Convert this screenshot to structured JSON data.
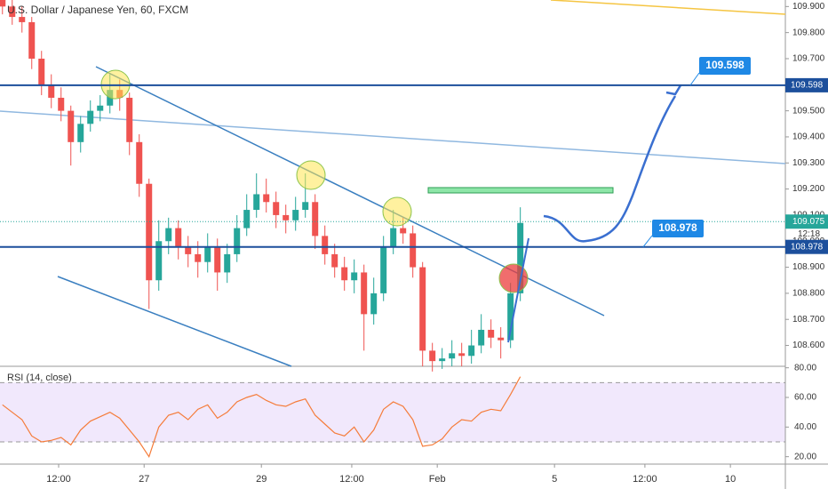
{
  "chart_data": [
    {
      "type": "candlestick",
      "title": "U.S. Dollar / Japanese Yen, 60, FXCM",
      "up_color": "#26a69a",
      "down_color": "#ef5350",
      "x": [
        1,
        5,
        9,
        13,
        17,
        21,
        25,
        29,
        33,
        37,
        41,
        45,
        49,
        53,
        57,
        61,
        65,
        69,
        73,
        77,
        81,
        85,
        89,
        93,
        97,
        101,
        105,
        109,
        113,
        117,
        121,
        125,
        129,
        133,
        137,
        141,
        145,
        149,
        153,
        157,
        161,
        165,
        169,
        173,
        177,
        181,
        185,
        189,
        193,
        197,
        201,
        205,
        209,
        213
      ],
      "ohlc": [
        [
          109.93,
          109.96,
          109.87,
          109.9
        ],
        [
          109.9,
          109.93,
          109.83,
          109.86
        ],
        [
          109.86,
          109.9,
          109.8,
          109.84
        ],
        [
          109.84,
          109.86,
          109.66,
          109.7
        ],
        [
          109.7,
          109.73,
          109.56,
          109.6
        ],
        [
          109.6,
          109.64,
          109.51,
          109.55
        ],
        [
          109.55,
          109.59,
          109.46,
          109.5
        ],
        [
          109.5,
          109.52,
          109.29,
          109.38
        ],
        [
          109.38,
          109.48,
          109.34,
          109.45
        ],
        [
          109.45,
          109.54,
          109.42,
          109.5
        ],
        [
          109.5,
          109.56,
          109.46,
          109.52
        ],
        [
          109.52,
          109.64,
          109.49,
          109.58
        ],
        [
          109.58,
          109.62,
          109.5,
          109.55
        ],
        [
          109.55,
          109.57,
          109.33,
          109.38
        ],
        [
          109.38,
          109.41,
          109.17,
          109.22
        ],
        [
          109.22,
          109.24,
          108.74,
          108.85
        ],
        [
          108.85,
          109.08,
          108.81,
          109.0
        ],
        [
          109.0,
          109.09,
          108.95,
          109.05
        ],
        [
          109.05,
          109.08,
          108.93,
          108.98
        ],
        [
          108.98,
          109.02,
          108.9,
          108.95
        ],
        [
          108.95,
          109.0,
          108.86,
          108.92
        ],
        [
          108.92,
          109.03,
          108.88,
          108.98
        ],
        [
          108.98,
          109.01,
          108.81,
          108.88
        ],
        [
          108.88,
          108.99,
          108.84,
          108.95
        ],
        [
          108.95,
          109.1,
          108.92,
          109.05
        ],
        [
          109.05,
          109.18,
          109.02,
          109.12
        ],
        [
          109.12,
          109.26,
          109.09,
          109.18
        ],
        [
          109.18,
          109.24,
          109.11,
          109.15
        ],
        [
          109.15,
          109.19,
          109.05,
          109.1
        ],
        [
          109.1,
          109.14,
          109.03,
          109.08
        ],
        [
          109.08,
          109.17,
          109.04,
          109.12
        ],
        [
          109.12,
          109.26,
          109.09,
          109.15
        ],
        [
          109.15,
          109.18,
          108.97,
          109.02
        ],
        [
          109.02,
          109.06,
          108.91,
          108.95
        ],
        [
          108.95,
          108.99,
          108.86,
          108.9
        ],
        [
          108.9,
          108.94,
          108.81,
          108.85
        ],
        [
          108.85,
          108.93,
          108.8,
          108.88
        ],
        [
          108.88,
          108.91,
          108.58,
          108.72
        ],
        [
          108.72,
          108.86,
          108.68,
          108.8
        ],
        [
          108.8,
          109.02,
          108.77,
          108.98
        ],
        [
          108.98,
          109.12,
          108.95,
          109.05
        ],
        [
          109.05,
          109.09,
          108.99,
          109.03
        ],
        [
          109.03,
          109.06,
          108.86,
          108.9
        ],
        [
          108.9,
          108.92,
          108.52,
          108.58
        ],
        [
          108.58,
          108.61,
          108.5,
          108.54
        ],
        [
          108.54,
          108.59,
          108.51,
          108.55
        ],
        [
          108.55,
          108.62,
          108.52,
          108.57
        ],
        [
          108.57,
          108.61,
          108.52,
          108.56
        ],
        [
          108.56,
          108.66,
          108.53,
          108.6
        ],
        [
          108.6,
          108.72,
          108.57,
          108.66
        ],
        [
          108.66,
          108.7,
          108.59,
          108.63
        ],
        [
          108.63,
          108.67,
          108.55,
          108.62
        ],
        [
          108.62,
          108.84,
          108.59,
          108.8
        ],
        [
          108.8,
          109.13,
          108.77,
          109.07
        ]
      ],
      "xlim": [
        0,
        321.5
      ],
      "xticks": [
        {
          "value": 24,
          "label": "12:00"
        },
        {
          "value": 59,
          "label": "27"
        },
        {
          "value": 107,
          "label": "29"
        },
        {
          "value": 144,
          "label": "12:00"
        },
        {
          "value": 179,
          "label": "Feb"
        },
        {
          "value": 227,
          "label": "5"
        },
        {
          "value": 264,
          "label": "12:00"
        },
        {
          "value": 299,
          "label": "10"
        }
      ],
      "ylim": [
        108.52,
        109.925
      ],
      "yticks": [
        {
          "value": 108.6,
          "label": "108.600"
        },
        {
          "value": 108.7,
          "label": "108.700"
        },
        {
          "value": 108.8,
          "label": "108.800"
        },
        {
          "value": 108.9,
          "label": "108.900"
        },
        {
          "value": 109.0,
          "label": "109.000"
        },
        {
          "value": 109.1,
          "label": "109.100"
        },
        {
          "value": 109.2,
          "label": "109.200"
        },
        {
          "value": 109.3,
          "label": "109.300"
        },
        {
          "value": 109.4,
          "label": "109.400"
        },
        {
          "value": 109.5,
          "label": "109.500"
        },
        {
          "value": 109.6,
          "label": "109.600"
        },
        {
          "value": 109.7,
          "label": "109.700"
        },
        {
          "value": 109.8,
          "label": "109.800"
        },
        {
          "value": 109.9,
          "label": "109.900"
        }
      ],
      "levels": [
        109.598,
        108.978
      ],
      "last": 109.075,
      "countdown": "12:18"
    },
    {
      "type": "line",
      "title": "RSI (14, close)",
      "color": "#f57c3a",
      "x": [
        1,
        5,
        9,
        13,
        17,
        21,
        25,
        29,
        33,
        37,
        41,
        45,
        49,
        53,
        57,
        61,
        65,
        69,
        73,
        77,
        81,
        85,
        89,
        93,
        97,
        101,
        105,
        109,
        113,
        117,
        121,
        125,
        129,
        133,
        137,
        141,
        145,
        149,
        153,
        157,
        161,
        165,
        169,
        173,
        177,
        181,
        185,
        189,
        193,
        197,
        201,
        205,
        209,
        213
      ],
      "values": [
        55,
        50,
        45,
        34,
        30,
        31,
        33,
        28,
        38,
        44,
        47,
        50,
        46,
        38,
        30,
        20,
        40,
        48,
        50,
        45,
        52,
        55,
        46,
        50,
        57,
        60,
        62,
        58,
        55,
        54,
        57,
        59,
        48,
        42,
        36,
        34,
        40,
        30,
        38,
        52,
        57,
        54,
        45,
        27,
        28,
        32,
        40,
        45,
        44,
        50,
        52,
        51,
        62,
        74
      ],
      "band": [
        30,
        70
      ],
      "ylim": [
        15,
        81
      ],
      "yticks": [
        {
          "value": 20,
          "label": "20.00"
        },
        {
          "value": 40,
          "label": "40.00"
        },
        {
          "value": 60,
          "label": "60.00"
        },
        {
          "value": 80,
          "label": "80.00"
        }
      ]
    }
  ]
}
